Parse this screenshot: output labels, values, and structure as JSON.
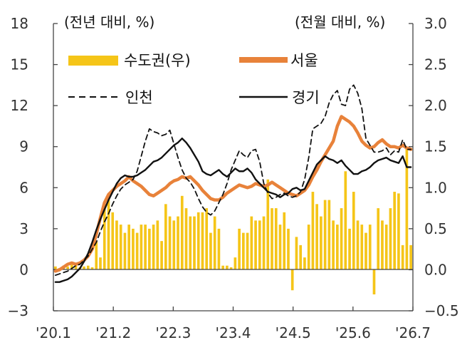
{
  "chart_data": {
    "type": "bar+line",
    "left_axis_label": "(전년 대비, %)",
    "right_axis_label": "(전월 대비, %)",
    "left_axis": {
      "min": -3,
      "max": 18,
      "ticks": [
        "18",
        "15",
        "12",
        "9",
        "6",
        "3",
        "0",
        "−3"
      ]
    },
    "right_axis": {
      "min": -0.5,
      "max": 3.0,
      "ticks": [
        "3.0",
        "2.5",
        "2.0",
        "1.5",
        "1.0",
        "0.5",
        "0.0",
        "−0.5"
      ]
    },
    "x_tick_labels": [
      "'20.1",
      "'21.2",
      "'22.3",
      "'23.4",
      "'24.5",
      "'25.6",
      "'26.7"
    ],
    "bar_series": {
      "name": "수도권(우)",
      "axis": "right",
      "color": "#F5C518",
      "values": [
        0.04,
        0.02,
        0.05,
        0.04,
        0.06,
        0.05,
        0.03,
        0.04,
        0.05,
        0.03,
        0.35,
        0.15,
        0.8,
        0.85,
        0.7,
        0.6,
        0.55,
        0.45,
        0.55,
        0.5,
        0.45,
        0.55,
        0.55,
        0.5,
        0.55,
        0.6,
        0.35,
        0.8,
        0.65,
        0.6,
        0.65,
        0.9,
        0.75,
        0.65,
        0.65,
        0.7,
        0.7,
        0.75,
        0.45,
        0.65,
        0.5,
        0.05,
        0.05,
        0.03,
        0.15,
        0.5,
        0.45,
        0.45,
        0.65,
        0.6,
        0.6,
        0.65,
        1.1,
        0.75,
        0.75,
        0.55,
        0.7,
        0.5,
        -0.25,
        0.4,
        0.3,
        0.15,
        0.55,
        0.95,
        0.8,
        0.65,
        0.85,
        0.85,
        0.6,
        0.55,
        0.75,
        1.2,
        0.5,
        0.95,
        0.6,
        0.55,
        0.45,
        0.55,
        -0.3,
        0.75,
        0.6,
        0.55,
        0.75,
        0.95,
        0.93,
        0.3,
        1.5,
        0.3
      ]
    },
    "line_series": [
      {
        "name": "서울",
        "axis": "left",
        "color": "#E8823A",
        "width": 4.5,
        "dash": "",
        "values": [
          -0.1,
          0.0,
          0.2,
          0.4,
          0.5,
          0.4,
          0.5,
          0.7,
          1.0,
          1.5,
          2.6,
          3.8,
          4.9,
          5.5,
          5.8,
          6.1,
          6.3,
          6.5,
          6.8,
          6.5,
          6.3,
          6.1,
          5.8,
          5.5,
          5.4,
          5.6,
          5.8,
          6.0,
          6.3,
          6.5,
          6.6,
          6.8,
          6.7,
          6.8,
          6.5,
          6.2,
          5.8,
          5.5,
          5.2,
          5.1,
          5.1,
          5.3,
          5.6,
          5.8,
          6.0,
          6.2,
          6.1,
          6.0,
          6.1,
          6.3,
          6.2,
          6.1,
          6.2,
          6.4,
          6.2,
          6.0,
          5.8,
          5.6,
          5.5,
          5.4,
          5.6,
          5.8,
          6.2,
          6.8,
          7.3,
          7.9,
          8.4,
          8.9,
          9.4,
          10.5,
          11.2,
          11.0,
          10.8,
          10.5,
          10.0,
          9.4,
          9.1,
          8.9,
          9.0,
          9.3,
          9.5,
          9.2,
          9.0,
          9.0,
          8.9,
          9.1,
          8.9,
          8.8
        ]
      },
      {
        "name": "인천",
        "axis": "left",
        "color": "#111111",
        "width": 1.8,
        "dash": "7,5",
        "values": [
          -0.4,
          -0.3,
          -0.2,
          -0.1,
          0.1,
          0.3,
          0.4,
          0.7,
          1.0,
          1.5,
          2.0,
          2.8,
          3.5,
          4.1,
          4.8,
          5.4,
          5.9,
          6.2,
          6.4,
          6.6,
          7.2,
          8.3,
          9.4,
          10.3,
          10.1,
          10.0,
          9.8,
          9.9,
          10.2,
          9.2,
          8.2,
          7.3,
          6.7,
          6.4,
          5.9,
          5.2,
          4.6,
          4.2,
          4.0,
          4.3,
          4.9,
          5.5,
          6.3,
          7.3,
          8.0,
          8.7,
          8.4,
          8.2,
          8.7,
          8.8,
          7.9,
          6.3,
          5.6,
          5.2,
          5.3,
          5.5,
          5.6,
          5.4,
          5.3,
          5.4,
          5.7,
          6.6,
          8.2,
          10.3,
          10.5,
          10.7,
          11.2,
          12.2,
          12.8,
          13.1,
          12.1,
          12.0,
          13.2,
          13.5,
          12.9,
          11.8,
          9.6,
          9.1,
          8.6,
          8.6,
          8.7,
          8.9,
          8.4,
          8.7,
          8.6,
          9.5,
          8.8,
          8.8
        ]
      },
      {
        "name": "경기",
        "axis": "left",
        "color": "#111111",
        "width": 2.4,
        "dash": "",
        "values": [
          -0.9,
          -0.9,
          -0.8,
          -0.7,
          -0.5,
          -0.2,
          0.1,
          0.6,
          1.2,
          2.0,
          2.9,
          3.7,
          4.4,
          5.1,
          5.7,
          6.3,
          6.7,
          6.9,
          6.8,
          6.8,
          6.9,
          7.1,
          7.3,
          7.6,
          7.9,
          8.0,
          8.2,
          8.5,
          8.8,
          9.1,
          9.3,
          9.6,
          9.3,
          8.9,
          8.4,
          7.9,
          7.2,
          7.0,
          6.9,
          7.1,
          7.3,
          7.0,
          6.8,
          7.1,
          7.4,
          7.2,
          7.2,
          7.4,
          7.1,
          6.6,
          6.3,
          6.0,
          5.7,
          5.6,
          5.5,
          5.3,
          5.5,
          5.6,
          5.9,
          6.0,
          5.8,
          5.9,
          6.5,
          7.1,
          7.7,
          8.0,
          8.3,
          8.1,
          8.0,
          7.8,
          8.0,
          7.6,
          7.3,
          7.0,
          7.0,
          7.2,
          7.3,
          7.5,
          7.8,
          8.0,
          8.1,
          8.2,
          8.0,
          7.9,
          7.8,
          8.3,
          7.5,
          7.5
        ]
      }
    ],
    "legend": [
      {
        "label": "수도권(우)",
        "type": "bar",
        "color": "#F5C518"
      },
      {
        "label": "서울",
        "type": "line",
        "color": "#E8823A"
      },
      {
        "label": "인천",
        "type": "dashed",
        "color": "#111111"
      },
      {
        "label": "경기",
        "type": "line",
        "color": "#111111"
      }
    ]
  }
}
